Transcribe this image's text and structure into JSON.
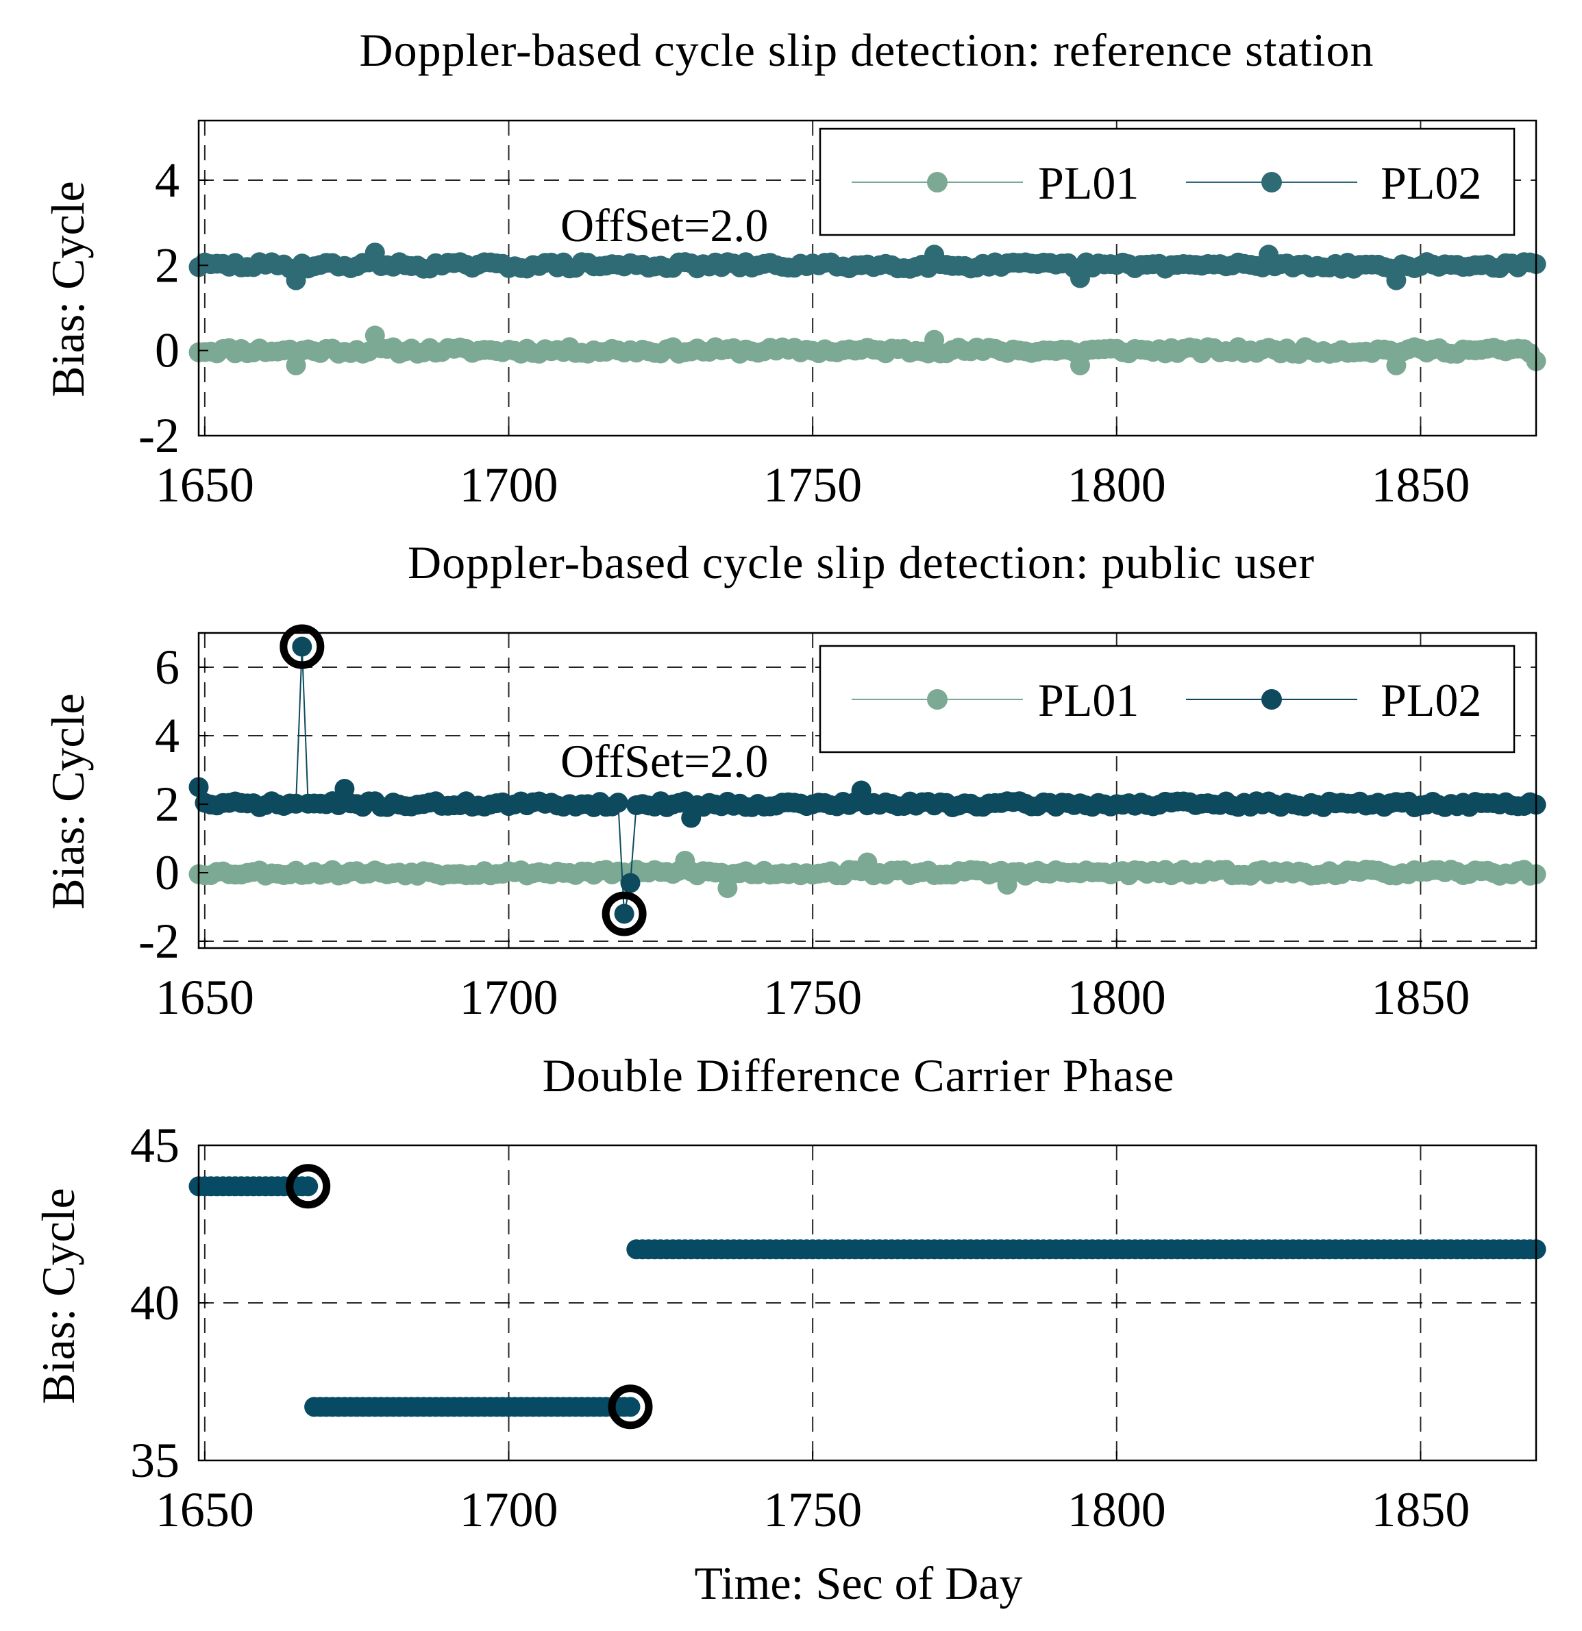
{
  "colors": {
    "pl01": "#7ca993",
    "pl02_ref": "#2e6b75",
    "pl02_user": "#0d4a5e",
    "dd": "#064a63",
    "marker": "#000000"
  },
  "chart_data": [
    {
      "id": "ref",
      "type": "scatter",
      "title": "Doppler-based cycle slip detection:  reference station",
      "ylabel": "Bias:  Cycle",
      "xlabel": "",
      "xlim": [
        1649,
        1869
      ],
      "ylim": [
        -2,
        5.4
      ],
      "xticks": [
        1650,
        1700,
        1750,
        1800,
        1850
      ],
      "xtick_labels": [
        "1650",
        "1700",
        "1750",
        "1800",
        "1850"
      ],
      "yticks": [
        -2,
        0,
        2,
        4
      ],
      "ytick_labels": [
        "-2",
        "0",
        "2",
        "4"
      ],
      "annotation": "OffSet=2.0",
      "legend": [
        "PL01",
        "PL02"
      ],
      "x": {
        "start": 1649,
        "end": 1869,
        "step": 1
      },
      "series": [
        {
          "name": "PL01",
          "base": 0.0,
          "noise": 0.08,
          "seed": 11,
          "color_key": "pl01",
          "outliers": [
            [
              1665,
              -0.35
            ],
            [
              1678,
              0.35
            ],
            [
              1770,
              0.25
            ],
            [
              1794,
              -0.35
            ],
            [
              1846,
              -0.35
            ],
            [
              1869,
              -0.25
            ]
          ]
        },
        {
          "name": "PL02",
          "base": 2.0,
          "noise": 0.08,
          "seed": 29,
          "color_key": "pl02_ref",
          "outliers": [
            [
              1665,
              1.65
            ],
            [
              1678,
              2.3
            ],
            [
              1770,
              2.25
            ],
            [
              1794,
              1.7
            ],
            [
              1846,
              1.65
            ],
            [
              1825,
              2.25
            ]
          ]
        }
      ],
      "circles": []
    },
    {
      "id": "user",
      "type": "scatter",
      "title": "Doppler-based cycle slip detection:  public user",
      "ylabel": "Bias:  Cycle",
      "xlabel": "",
      "xlim": [
        1649,
        1869
      ],
      "ylim": [
        -2.2,
        7.0
      ],
      "xticks": [
        1650,
        1700,
        1750,
        1800,
        1850
      ],
      "xtick_labels": [
        "1650",
        "1700",
        "1750",
        "1800",
        "1850"
      ],
      "yticks": [
        -2,
        0,
        2,
        4,
        6
      ],
      "ytick_labels": [
        "-2",
        "0",
        "2",
        "4",
        "6"
      ],
      "annotation": "OffSet=2.0",
      "legend": [
        "PL01",
        "PL02"
      ],
      "x": {
        "start": 1649,
        "end": 1869,
        "step": 1
      },
      "series": [
        {
          "name": "PL01",
          "base": 0.0,
          "noise": 0.09,
          "seed": 53,
          "color_key": "pl01",
          "outliers": [
            [
              1729,
              0.35
            ],
            [
              1736,
              -0.45
            ],
            [
              1759,
              0.3
            ],
            [
              1782,
              -0.35
            ]
          ]
        },
        {
          "name": "PL02",
          "base": 2.0,
          "noise": 0.09,
          "seed": 71,
          "color_key": "pl02_user",
          "outliers": [
            [
              1649,
              2.5
            ],
            [
              1666,
              6.6
            ],
            [
              1673,
              2.45
            ],
            [
              1719,
              -1.2
            ],
            [
              1720,
              -0.3
            ],
            [
              1730,
              1.6
            ],
            [
              1758,
              2.4
            ]
          ]
        }
      ],
      "circles": [
        [
          1666,
          6.6
        ],
        [
          1719,
          -1.2
        ]
      ]
    },
    {
      "id": "dd",
      "type": "scatter",
      "title": "Double Difference Carrier Phase",
      "ylabel": "Bias:  Cycle",
      "xlabel": "Time:  Sec of Day",
      "xlim": [
        1649,
        1869
      ],
      "ylim": [
        35,
        45
      ],
      "xticks": [
        1650,
        1700,
        1750,
        1800,
        1850
      ],
      "xtick_labels": [
        "1650",
        "1700",
        "1750",
        "1800",
        "1850"
      ],
      "yticks": [
        35,
        40,
        45
      ],
      "ytick_labels": [
        "35",
        "40",
        "45"
      ],
      "annotation": "",
      "legend": [],
      "segments": [
        {
          "x_start": 1649,
          "x_end": 1667,
          "y": 43.7
        },
        {
          "x_start": 1668,
          "x_end": 1720,
          "y": 36.7
        },
        {
          "x_start": 1721,
          "x_end": 1869,
          "y": 41.7
        }
      ],
      "circles": [
        [
          1667,
          43.7
        ],
        [
          1720,
          36.7
        ]
      ]
    }
  ]
}
